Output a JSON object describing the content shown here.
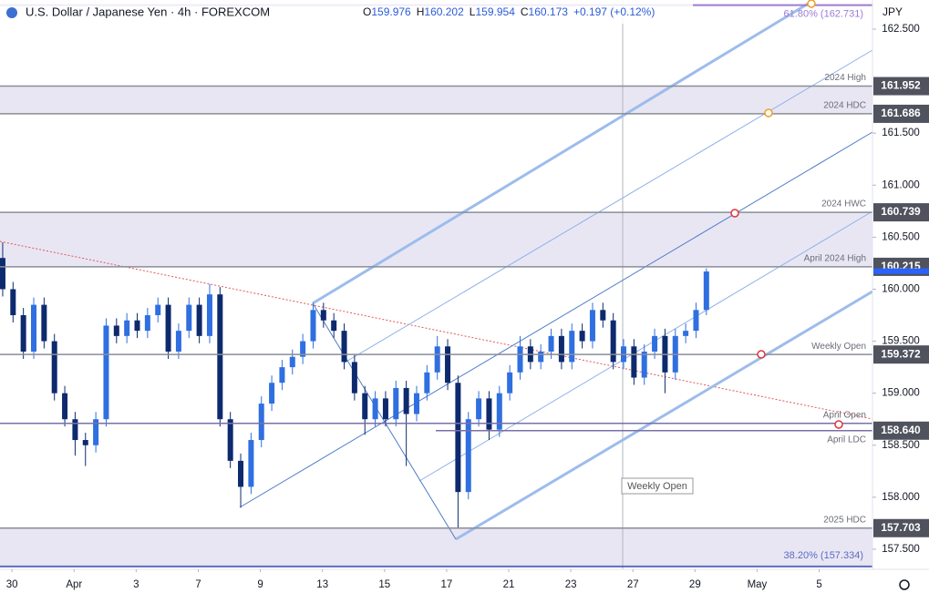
{
  "header": {
    "title": "U.S. Dollar / Japanese Yen · 4h · FOREXCOM",
    "ohlc": [
      {
        "key": "O",
        "value": "159.976"
      },
      {
        "key": "H",
        "value": "160.202"
      },
      {
        "key": "L",
        "value": "159.954"
      },
      {
        "key": "C",
        "value": "160.173"
      }
    ],
    "change": "+0.197 (+0.12%)",
    "currency": "JPY"
  },
  "chart_data": {
    "type": "candlestick",
    "up_color": "#2f6fe0",
    "down_color": "#0d2a6e",
    "ylim": [
      157.307,
      162.78
    ],
    "xlim": [
      -0.26,
      84.05
    ],
    "yticks": [
      {
        "value": 157.5,
        "label": "157.500"
      },
      {
        "value": 158,
        "label": "158.000"
      },
      {
        "value": 158.5,
        "label": "158.500"
      },
      {
        "value": 159,
        "label": "159.000"
      },
      {
        "value": 159.5,
        "label": "159.500"
      },
      {
        "value": 160,
        "label": "160.000"
      },
      {
        "value": 160.5,
        "label": "160.500"
      },
      {
        "value": 161,
        "label": "161.000"
      },
      {
        "value": 161.5,
        "label": "161.500"
      },
      {
        "value": 162.5,
        "label": "162.500"
      }
    ],
    "xticks": [
      {
        "value": 0.9,
        "label": "30"
      },
      {
        "value": 6.9,
        "label": "Apr"
      },
      {
        "value": 12.9,
        "label": "3"
      },
      {
        "value": 18.9,
        "label": "7"
      },
      {
        "value": 24.9,
        "label": "9"
      },
      {
        "value": 30.9,
        "label": "13"
      },
      {
        "value": 36.9,
        "label": "15"
      },
      {
        "value": 42.9,
        "label": "17"
      },
      {
        "value": 48.9,
        "label": "21"
      },
      {
        "value": 54.9,
        "label": "23"
      },
      {
        "value": 60.9,
        "label": "27"
      },
      {
        "value": 66.9,
        "label": "29"
      },
      {
        "value": 72.9,
        "label": "May"
      },
      {
        "value": 78.9,
        "label": "5"
      }
    ],
    "ohlc": [
      [
        160.3,
        160.45,
        159.93,
        160.0
      ],
      [
        160.0,
        160.07,
        159.68,
        159.75
      ],
      [
        159.75,
        159.82,
        159.33,
        159.4
      ],
      [
        159.4,
        159.92,
        159.33,
        159.85
      ],
      [
        159.85,
        159.92,
        159.43,
        159.5
      ],
      [
        159.5,
        159.57,
        158.93,
        159.0
      ],
      [
        159.0,
        159.07,
        158.68,
        158.75
      ],
      [
        158.75,
        158.82,
        158.4,
        158.55
      ],
      [
        158.55,
        158.62,
        158.3,
        158.5
      ],
      [
        158.5,
        158.82,
        158.43,
        158.75
      ],
      [
        158.75,
        159.72,
        158.68,
        159.65
      ],
      [
        159.65,
        159.72,
        159.48,
        159.55
      ],
      [
        159.55,
        159.77,
        159.48,
        159.7
      ],
      [
        159.7,
        159.77,
        159.53,
        159.6
      ],
      [
        159.6,
        159.82,
        159.53,
        159.75
      ],
      [
        159.75,
        159.92,
        159.68,
        159.85
      ],
      [
        159.85,
        159.92,
        159.33,
        159.4
      ],
      [
        159.4,
        159.67,
        159.33,
        159.6
      ],
      [
        159.6,
        159.92,
        159.53,
        159.85
      ],
      [
        159.85,
        159.92,
        159.48,
        159.55
      ],
      [
        159.55,
        160.05,
        159.48,
        159.95
      ],
      [
        159.95,
        160.02,
        158.68,
        158.75
      ],
      [
        158.75,
        158.82,
        158.28,
        158.35
      ],
      [
        158.35,
        158.42,
        157.9,
        158.1
      ],
      [
        158.1,
        158.62,
        158.03,
        158.55
      ],
      [
        158.55,
        158.97,
        158.48,
        158.9
      ],
      [
        158.9,
        159.17,
        158.83,
        159.1
      ],
      [
        159.1,
        159.32,
        159.03,
        159.25
      ],
      [
        159.25,
        159.42,
        159.18,
        159.35
      ],
      [
        159.35,
        159.57,
        159.28,
        159.5
      ],
      [
        159.5,
        159.87,
        159.43,
        159.8
      ],
      [
        159.8,
        159.87,
        159.63,
        159.7
      ],
      [
        159.7,
        159.77,
        159.53,
        159.6
      ],
      [
        159.6,
        159.67,
        159.23,
        159.3
      ],
      [
        159.3,
        159.37,
        158.93,
        159.0
      ],
      [
        159.0,
        159.07,
        158.6,
        158.75
      ],
      [
        158.75,
        159.02,
        158.68,
        158.95
      ],
      [
        158.95,
        159.02,
        158.68,
        158.75
      ],
      [
        158.75,
        159.12,
        158.68,
        159.05
      ],
      [
        159.05,
        159.12,
        158.3,
        158.8
      ],
      [
        158.8,
        159.07,
        158.73,
        159.0
      ],
      [
        159.0,
        159.27,
        158.93,
        159.2
      ],
      [
        159.2,
        159.55,
        159.13,
        159.45
      ],
      [
        159.45,
        159.52,
        159.03,
        159.1
      ],
      [
        159.1,
        159.17,
        157.7,
        158.05
      ],
      [
        158.05,
        158.82,
        157.98,
        158.75
      ],
      [
        158.75,
        159.02,
        158.68,
        158.95
      ],
      [
        158.95,
        159.02,
        158.55,
        158.65
      ],
      [
        158.65,
        159.07,
        158.58,
        159.0
      ],
      [
        159.0,
        159.27,
        158.93,
        159.2
      ],
      [
        159.2,
        159.55,
        159.13,
        159.45
      ],
      [
        159.45,
        159.52,
        159.23,
        159.3
      ],
      [
        159.3,
        159.47,
        159.23,
        159.4
      ],
      [
        159.4,
        159.62,
        159.33,
        159.55
      ],
      [
        159.55,
        159.62,
        159.23,
        159.3
      ],
      [
        159.3,
        159.67,
        159.23,
        159.6
      ],
      [
        159.6,
        159.67,
        159.43,
        159.5
      ],
      [
        159.5,
        159.87,
        159.43,
        159.8
      ],
      [
        159.8,
        159.87,
        159.63,
        159.7
      ],
      [
        159.7,
        159.77,
        159.23,
        159.3
      ],
      [
        159.3,
        159.52,
        159.23,
        159.45
      ],
      [
        159.45,
        159.52,
        159.08,
        159.15
      ],
      [
        159.15,
        159.47,
        159.08,
        159.4
      ],
      [
        159.4,
        159.62,
        159.33,
        159.55
      ],
      [
        159.55,
        159.62,
        159.0,
        159.2
      ],
      [
        159.2,
        159.62,
        159.13,
        159.55
      ],
      [
        159.55,
        159.67,
        159.48,
        159.6
      ],
      [
        159.6,
        159.87,
        159.53,
        159.8
      ],
      [
        159.8,
        160.2,
        159.75,
        160.17
      ]
    ],
    "levels": [
      {
        "name": "2024 High",
        "value": 161.952,
        "label": "161.952"
      },
      {
        "name": "2024 HDC",
        "value": 161.686,
        "label": "161.686"
      },
      {
        "name": "2024 HWC",
        "value": 160.739,
        "label": "160.739"
      },
      {
        "name": "April 2024 High",
        "value": 160.215,
        "label": "160.215"
      },
      {
        "name": "Weekly Open",
        "value": 159.372,
        "label": "159.372"
      },
      {
        "name": "April Open",
        "value": 158.71
      },
      {
        "name": "April LDC",
        "value": 158.64,
        "label": "158.640"
      },
      {
        "name": "2025 HDC",
        "value": 157.703,
        "label": "157.703"
      }
    ],
    "fibs": [
      {
        "label": "61.80% (162.731)",
        "value": 162.731
      },
      {
        "label": "38.20% (157.334)",
        "value": 157.334
      }
    ],
    "last_price": 160.173,
    "annotations": [
      "Weekly Open"
    ]
  }
}
